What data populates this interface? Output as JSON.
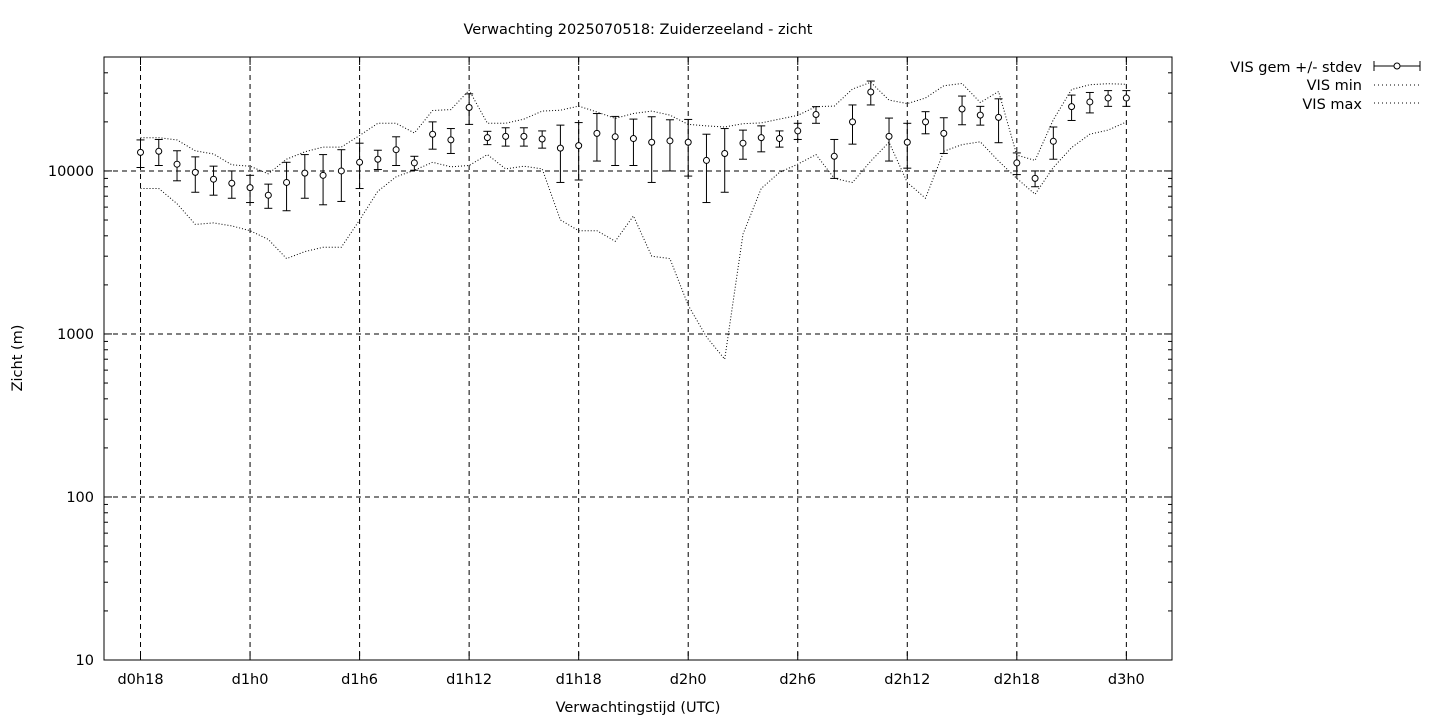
{
  "chart_data": {
    "type": "line",
    "title": "Verwachting 2025070518: Zuiderzeeland - zicht",
    "xlabel": "Verwachtingstijd (UTC)",
    "ylabel": "Zicht (m)",
    "y_scale": "log",
    "ylim": [
      10,
      50000
    ],
    "xlim_hours": [
      16,
      74.5
    ],
    "grid": true,
    "legend_position": "outside-top-right",
    "x_ticks": [
      {
        "hour": 18,
        "label": "d0h18"
      },
      {
        "hour": 24,
        "label": "d1h0"
      },
      {
        "hour": 30,
        "label": "d1h6"
      },
      {
        "hour": 36,
        "label": "d1h12"
      },
      {
        "hour": 42,
        "label": "d1h18"
      },
      {
        "hour": 48,
        "label": "d2h0"
      },
      {
        "hour": 54,
        "label": "d2h6"
      },
      {
        "hour": 60,
        "label": "d2h12"
      },
      {
        "hour": 66,
        "label": "d2h18"
      },
      {
        "hour": 72,
        "label": "d3h0"
      }
    ],
    "y_ticks": [
      {
        "value": 10,
        "label": "10"
      },
      {
        "value": 100,
        "label": "100"
      },
      {
        "value": 1000,
        "label": "1000"
      },
      {
        "value": 10000,
        "label": "10000"
      }
    ],
    "x_hours": [
      18,
      19,
      20,
      21,
      22,
      23,
      24,
      25,
      26,
      27,
      28,
      29,
      30,
      31,
      32,
      33,
      34,
      35,
      36,
      37,
      38,
      39,
      40,
      41,
      42,
      43,
      44,
      45,
      46,
      47,
      48,
      49,
      50,
      51,
      52,
      53,
      54,
      55,
      56,
      57,
      58,
      59,
      60,
      61,
      62,
      63,
      64,
      65,
      66,
      67,
      68,
      69,
      70,
      71,
      72
    ],
    "series": [
      {
        "name": "VIS gem +/- stdev",
        "style": "points-errorbars",
        "mean": [
          13000,
          13200,
          11000,
          9800,
          8900,
          8400,
          7900,
          7100,
          8500,
          9700,
          9400,
          10000,
          11300,
          11800,
          13500,
          11200,
          16800,
          15500,
          24500,
          16000,
          16300,
          16300,
          15700,
          13800,
          14300,
          17000,
          16200,
          15800,
          15000,
          15300,
          15000,
          11600,
          12800,
          14800,
          16000,
          15800,
          17600,
          22200,
          12300,
          20000,
          30500,
          16300,
          15000,
          20000,
          17000,
          24000,
          22000,
          21300,
          11200,
          9000,
          15200,
          24800,
          26500,
          28000,
          28000
        ],
        "lower": [
          10500,
          10800,
          8700,
          7400,
          7100,
          6800,
          6400,
          5900,
          5700,
          6800,
          6200,
          6500,
          7800,
          10200,
          10800,
          10100,
          13600,
          12800,
          19300,
          14500,
          14200,
          14200,
          13800,
          8500,
          8800,
          11500,
          10800,
          10800,
          8500,
          10000,
          9300,
          6400,
          7400,
          11800,
          13100,
          14000,
          15600,
          19600,
          9000,
          14600,
          25400,
          11500,
          10400,
          16900,
          12800,
          19200,
          19100,
          14900,
          9500,
          8000,
          11800,
          20400,
          22700,
          24900,
          24900
        ],
        "upper": [
          15500,
          15600,
          13300,
          12200,
          10700,
          10000,
          9400,
          8300,
          11300,
          12600,
          12600,
          13500,
          14800,
          13400,
          16200,
          12300,
          20000,
          18200,
          29700,
          17500,
          18400,
          18400,
          17600,
          19100,
          19800,
          22500,
          21600,
          20800,
          21500,
          20600,
          20700,
          16800,
          18200,
          17800,
          18900,
          17600,
          19600,
          24800,
          15600,
          25400,
          35600,
          21100,
          19600,
          23100,
          21200,
          28800,
          24900,
          27700,
          12900,
          10000,
          18600,
          29200,
          30300,
          31100,
          31100
        ]
      },
      {
        "name": "VIS min",
        "style": "dotted",
        "values": [
          7800,
          7800,
          6300,
          4700,
          4800,
          4600,
          4300,
          3800,
          2900,
          3200,
          3400,
          3400,
          5000,
          7500,
          9200,
          10100,
          11300,
          10600,
          10800,
          12600,
          10300,
          10700,
          10300,
          5000,
          4300,
          4300,
          3700,
          5300,
          3000,
          2900,
          1500,
          960,
          700,
          4100,
          7800,
          9800,
          11000,
          12600,
          9000,
          8500,
          11500,
          15000,
          8500,
          6800,
          13200,
          14500,
          15100,
          11500,
          9000,
          7200,
          10500,
          13900,
          16800,
          17800,
          20000
        ]
      },
      {
        "name": "VIS max",
        "style": "dotted",
        "values": [
          16000,
          16000,
          15500,
          13300,
          12700,
          10900,
          10700,
          9600,
          11800,
          13100,
          14000,
          14000,
          16500,
          19600,
          19600,
          17100,
          23500,
          23800,
          31300,
          19600,
          19600,
          20800,
          23300,
          23600,
          25000,
          23000,
          21000,
          22500,
          23300,
          22000,
          19300,
          18900,
          18600,
          19500,
          19700,
          20800,
          21900,
          24800,
          25000,
          31800,
          35000,
          27200,
          25900,
          28000,
          33300,
          34400,
          26300,
          30700,
          12500,
          11600,
          20600,
          31600,
          33800,
          34300,
          34000
        ]
      }
    ]
  }
}
